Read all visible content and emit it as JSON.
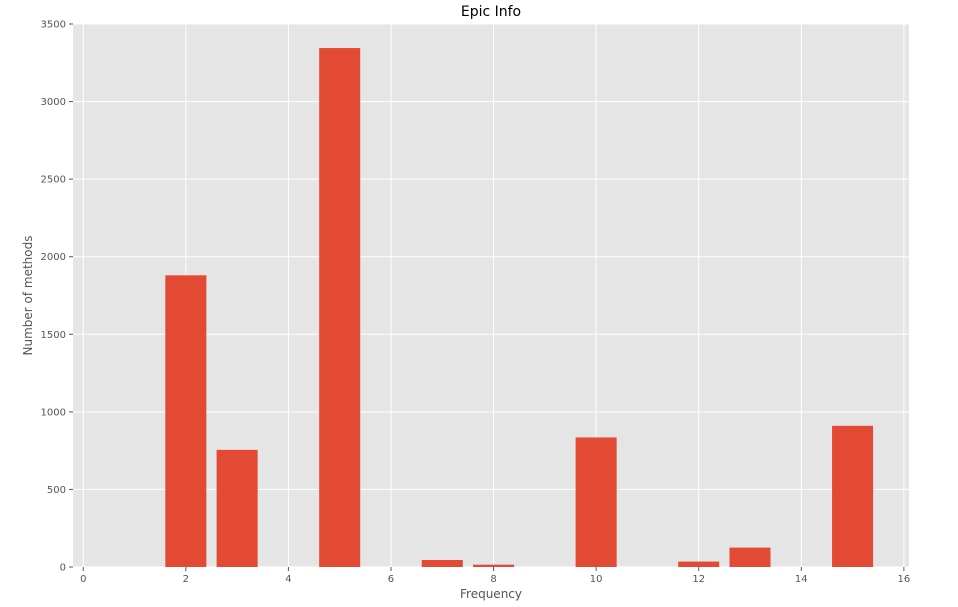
{
  "chart_data": {
    "type": "bar",
    "title": "Epic Info",
    "xlabel": "Frequency",
    "ylabel": "Number of methods",
    "x": [
      2,
      3,
      5,
      7,
      8,
      10,
      12,
      13,
      15
    ],
    "values": [
      1880,
      755,
      3345,
      45,
      15,
      835,
      35,
      125,
      910
    ],
    "xlim": [
      -0.2,
      16.1
    ],
    "ylim": [
      0,
      3500
    ],
    "xticks": [
      0,
      2,
      4,
      6,
      8,
      10,
      12,
      14,
      16
    ],
    "yticks": [
      0,
      500,
      1000,
      1500,
      2000,
      2500,
      3000,
      3500
    ],
    "grid": true,
    "colors": {
      "bar": "#E24A33",
      "plot_background": "#E5E5E5",
      "grid": "#FFFFFF",
      "tick_text": "#555555"
    }
  }
}
